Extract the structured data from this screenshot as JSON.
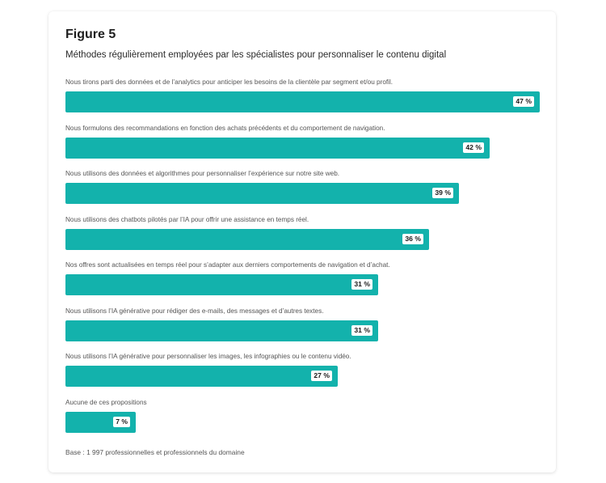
{
  "figure": {
    "title": "Figure 5",
    "subtitle": "Méthodes régulièrement employées par les spécialistes pour personnaliser le contenu digital",
    "footnote": "Base : 1 997 professionnelles et professionnels du domaine"
  },
  "colors": {
    "bar": "#13b2ac",
    "label_bg": "#ffffff"
  },
  "chart_data": {
    "type": "bar",
    "orientation": "horizontal",
    "title": "Méthodes régulièrement employées par les spécialistes pour personnaliser le contenu digital",
    "unit": "%",
    "xlim": [
      0,
      47
    ],
    "categories": [
      "Nous tirons parti des données et de l’analytics pour anticiper les besoins de la clientèle par segment et/ou profil.",
      "Nous formulons des recommandations en fonction des achats précédents et du comportement de navigation.",
      "Nous utilisons des données et algorithmes pour personnaliser l’expérience sur notre site web.",
      "Nous utilisons des chatbots pilotés par l’IA pour offrir une assistance en temps réel.",
      "Nos offres sont actualisées en temps réel pour s’adapter aux derniers comportements de navigation et d’achat.",
      "Nous utilisons l’IA générative pour rédiger des e-mails, des messages et d’autres textes.",
      "Nous utilisons l’IA générative pour personnaliser les images, les infographies ou le contenu vidéo.",
      "Aucune de ces propositions"
    ],
    "values": [
      47,
      42,
      39,
      36,
      31,
      31,
      27,
      7
    ],
    "value_labels": [
      "47 %",
      "42 %",
      "39 %",
      "36 %",
      "31 %",
      "31 %",
      "27 %",
      "7 %"
    ]
  }
}
